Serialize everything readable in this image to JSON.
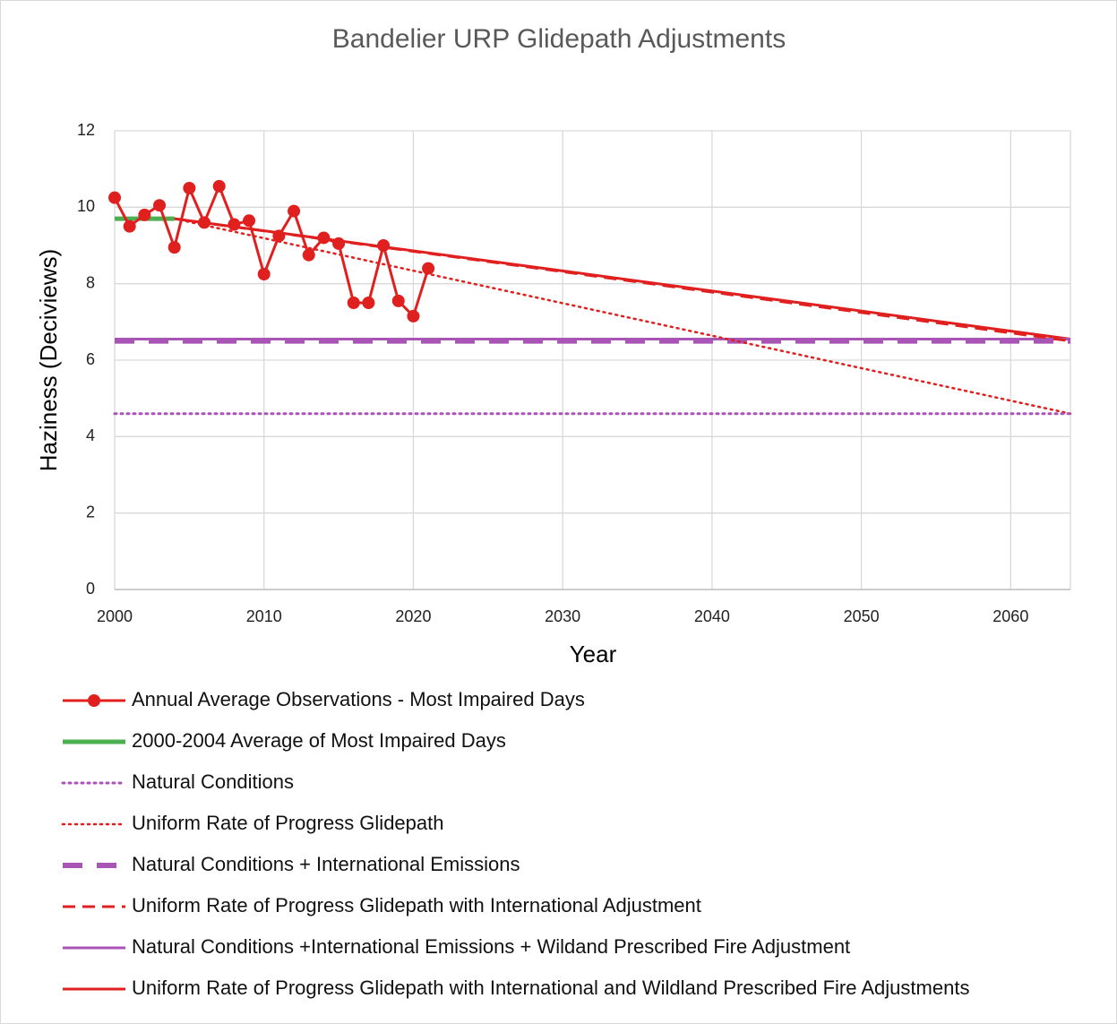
{
  "chart_data": {
    "type": "line",
    "title": "Bandelier URP Glidepath Adjustments",
    "xlabel": "Year",
    "ylabel": "Haziness (Deciviews)",
    "xlim": [
      2000,
      2064
    ],
    "xticks": [
      2000,
      2010,
      2020,
      2030,
      2040,
      2050,
      2060
    ],
    "ylim": [
      0,
      12
    ],
    "yticks": [
      0,
      2,
      4,
      6,
      8,
      10,
      12
    ],
    "grid": true,
    "legend": "bottom",
    "series": [
      {
        "name": "Annual Average Observations - Most Impaired Days",
        "color": "#e0201f",
        "style": "solid",
        "width": 3,
        "marker": true,
        "x": [
          2000,
          2001,
          2002,
          2003,
          2004,
          2005,
          2006,
          2007,
          2008,
          2009,
          2010,
          2011,
          2012,
          2013,
          2014,
          2015,
          2016,
          2017,
          2018,
          2019,
          2020,
          2021
        ],
        "values": [
          10.25,
          9.5,
          9.8,
          10.05,
          8.95,
          10.5,
          9.6,
          10.55,
          9.55,
          9.65,
          8.25,
          9.25,
          9.9,
          8.75,
          9.2,
          9.05,
          7.5,
          7.5,
          9.0,
          7.55,
          7.15,
          8.4
        ]
      },
      {
        "name": "2000-2004 Average of Most Impaired Days",
        "color": "#4caf50",
        "style": "solid",
        "width": 5,
        "marker": false,
        "x": [
          2000,
          2004
        ],
        "values": [
          9.7,
          9.7
        ]
      },
      {
        "name": "Natural Conditions",
        "color": "#a855b5",
        "style": "dotted",
        "width": 3,
        "marker": false,
        "x": [
          2000,
          2064
        ],
        "values": [
          4.6,
          4.6
        ]
      },
      {
        "name": "Uniform Rate of Progress Glidepath",
        "color": "#e0201f",
        "style": "dotted",
        "width": 2.5,
        "marker": false,
        "x": [
          2004,
          2064
        ],
        "values": [
          9.7,
          4.6
        ]
      },
      {
        "name": "Natural Conditions + International Emissions",
        "color": "#a855b5",
        "style": "dashed",
        "width": 6,
        "marker": false,
        "x": [
          2000,
          2064
        ],
        "values": [
          6.5,
          6.5
        ]
      },
      {
        "name": "Uniform Rate of Progress Glidepath with International Adjustment",
        "color": "#e0201f",
        "style": "dashed",
        "width": 3,
        "marker": false,
        "x": [
          2004,
          2064
        ],
        "values": [
          9.7,
          6.5
        ]
      },
      {
        "name": "Natural Conditions +International Emissions + Wildand Prescribed Fire Adjustment",
        "color": "#a855b5",
        "style": "solid",
        "width": 3,
        "marker": false,
        "x": [
          2000,
          2064
        ],
        "values": [
          6.55,
          6.55
        ]
      },
      {
        "name": "Uniform Rate of Progress Glidepath with International and Wildland Prescribed Fire Adjustments",
        "color": "#e0201f",
        "style": "solid",
        "width": 3,
        "marker": false,
        "x": [
          2004,
          2064
        ],
        "values": [
          9.7,
          6.55
        ]
      }
    ]
  }
}
